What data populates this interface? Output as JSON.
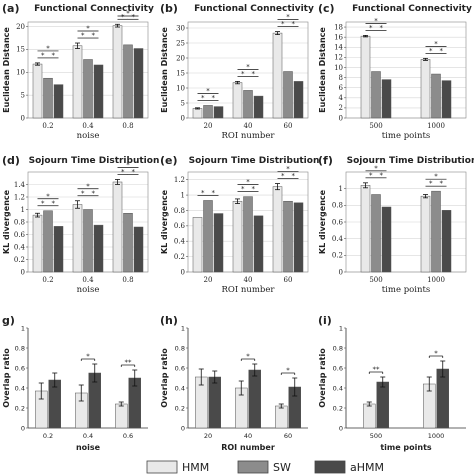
{
  "legend": [
    {
      "name": "HMM",
      "color": "#e9e9e9"
    },
    {
      "name": "SW",
      "color": "#8c8c8c"
    },
    {
      "name": "aHMM",
      "color": "#4a4a4a"
    }
  ],
  "chart_data": [
    {
      "letter": "(a)",
      "type": "bar",
      "title": "Functional Connectivity",
      "xlabel": "noise",
      "ylabel": "Euclidean Distance",
      "categories": [
        "0.2",
        "0.4",
        "0.8"
      ],
      "ylim": [
        0,
        21
      ],
      "yticks": [
        0,
        5,
        10,
        15,
        20
      ],
      "series": [
        {
          "name": "HMM",
          "values": [
            11.8,
            15.8,
            20.2
          ],
          "err": [
            0.25,
            0.6,
            0.3
          ]
        },
        {
          "name": "SW",
          "values": [
            8.7,
            12.8,
            16.0
          ],
          "err": [
            0,
            0,
            0
          ]
        },
        {
          "name": "aHMM",
          "values": [
            7.3,
            11.6,
            15.2
          ],
          "err": [
            0,
            0,
            0
          ]
        }
      ],
      "significance": [
        {
          "group": 0,
          "from": 0,
          "to": 1,
          "level": 0,
          "label": "*"
        },
        {
          "group": 0,
          "from": 0,
          "to": 2,
          "level": 1,
          "label": "*"
        },
        {
          "group": 0,
          "from": 1,
          "to": 2,
          "level": 0,
          "label": "*"
        },
        {
          "group": 1,
          "from": 0,
          "to": 1,
          "level": 0,
          "label": "*"
        },
        {
          "group": 1,
          "from": 0,
          "to": 2,
          "level": 1,
          "label": "*"
        },
        {
          "group": 1,
          "from": 1,
          "to": 2,
          "level": 0,
          "label": "*"
        },
        {
          "group": 2,
          "from": 0,
          "to": 1,
          "level": 0,
          "label": "*"
        },
        {
          "group": 2,
          "from": 0,
          "to": 2,
          "level": 1,
          "label": "*"
        },
        {
          "group": 2,
          "from": 1,
          "to": 2,
          "level": 0,
          "label": "*"
        }
      ]
    },
    {
      "letter": "(b)",
      "type": "bar",
      "title": "Functional Connectivity",
      "xlabel": "ROI number",
      "ylabel": "Euclidean Distance",
      "categories": [
        "20",
        "40",
        "60"
      ],
      "ylim": [
        0,
        32
      ],
      "yticks": [
        0,
        5,
        10,
        15,
        20,
        25,
        30
      ],
      "series": [
        {
          "name": "HMM",
          "values": [
            3.2,
            11.8,
            28.3
          ],
          "err": [
            0.2,
            0.4,
            0.5
          ]
        },
        {
          "name": "SW",
          "values": [
            4.2,
            9.2,
            15.5
          ],
          "err": [
            0,
            0,
            0
          ]
        },
        {
          "name": "aHMM",
          "values": [
            3.8,
            7.3,
            12.2
          ],
          "err": [
            0,
            0,
            0
          ]
        }
      ],
      "significance": [
        {
          "group": 0,
          "from": 0,
          "to": 1,
          "level": 0,
          "label": "*"
        },
        {
          "group": 0,
          "from": 0,
          "to": 2,
          "level": 1,
          "label": "*"
        },
        {
          "group": 0,
          "from": 1,
          "to": 2,
          "level": 0,
          "label": "*"
        },
        {
          "group": 1,
          "from": 0,
          "to": 1,
          "level": 0,
          "label": "*"
        },
        {
          "group": 1,
          "from": 0,
          "to": 2,
          "level": 1,
          "label": "*"
        },
        {
          "group": 1,
          "from": 1,
          "to": 2,
          "level": 0,
          "label": "*"
        },
        {
          "group": 2,
          "from": 0,
          "to": 1,
          "level": 0,
          "label": "*"
        },
        {
          "group": 2,
          "from": 0,
          "to": 2,
          "level": 1,
          "label": "*"
        },
        {
          "group": 2,
          "from": 1,
          "to": 2,
          "level": 0,
          "label": "*"
        }
      ]
    },
    {
      "letter": "(c)",
      "type": "bar",
      "title": "Functional Connectivity",
      "xlabel": "time points",
      "ylabel": "Euclidean Distance",
      "categories": [
        "500",
        "1000"
      ],
      "ylim": [
        0,
        19
      ],
      "yticks": [
        0,
        2,
        4,
        6,
        8,
        10,
        12,
        14,
        16,
        18
      ],
      "series": [
        {
          "name": "HMM",
          "values": [
            16.2,
            11.6
          ],
          "err": [
            0.15,
            0.2
          ]
        },
        {
          "name": "SW",
          "values": [
            9.2,
            8.7
          ],
          "err": [
            0,
            0
          ]
        },
        {
          "name": "aHMM",
          "values": [
            7.6,
            7.4
          ],
          "err": [
            0,
            0
          ]
        }
      ],
      "significance": [
        {
          "group": 0,
          "from": 0,
          "to": 1,
          "level": 0,
          "label": "*"
        },
        {
          "group": 0,
          "from": 0,
          "to": 2,
          "level": 1,
          "label": "*"
        },
        {
          "group": 0,
          "from": 1,
          "to": 2,
          "level": 0,
          "label": "*"
        },
        {
          "group": 1,
          "from": 0,
          "to": 1,
          "level": 0,
          "label": "*"
        },
        {
          "group": 1,
          "from": 0,
          "to": 2,
          "level": 1,
          "label": "*"
        },
        {
          "group": 1,
          "from": 1,
          "to": 2,
          "level": 0,
          "label": "*"
        }
      ]
    },
    {
      "letter": "(d)",
      "type": "bar",
      "title": "Sojourn Time Distribution",
      "xlabel": "noise",
      "ylabel": "KL divergence",
      "categories": [
        "0.2",
        "0.4",
        "0.8"
      ],
      "ylim": [
        0,
        1.6
      ],
      "yticks": [
        0,
        0.2,
        0.4,
        0.6,
        0.8,
        1,
        1.2,
        1.4
      ],
      "series": [
        {
          "name": "HMM",
          "values": [
            0.91,
            1.08,
            1.44
          ],
          "err": [
            0.03,
            0.06,
            0.04
          ]
        },
        {
          "name": "SW",
          "values": [
            0.98,
            1.0,
            0.94
          ],
          "err": [
            0,
            0,
            0
          ]
        },
        {
          "name": "aHMM",
          "values": [
            0.73,
            0.75,
            0.72
          ],
          "err": [
            0,
            0,
            0
          ]
        }
      ],
      "significance": [
        {
          "group": 0,
          "from": 0,
          "to": 1,
          "level": 0,
          "label": "*"
        },
        {
          "group": 0,
          "from": 0,
          "to": 2,
          "level": 1,
          "label": "*"
        },
        {
          "group": 0,
          "from": 1,
          "to": 2,
          "level": 0,
          "label": "*"
        },
        {
          "group": 1,
          "from": 0,
          "to": 1,
          "level": 0,
          "label": "*"
        },
        {
          "group": 1,
          "from": 0,
          "to": 2,
          "level": 1,
          "label": "*"
        },
        {
          "group": 1,
          "from": 1,
          "to": 2,
          "level": 0,
          "label": "*"
        },
        {
          "group": 2,
          "from": 0,
          "to": 1,
          "level": 0,
          "label": "*"
        },
        {
          "group": 2,
          "from": 0,
          "to": 2,
          "level": 1,
          "label": "*"
        },
        {
          "group": 2,
          "from": 1,
          "to": 2,
          "level": 0,
          "label": "*"
        }
      ]
    },
    {
      "letter": "(e)",
      "type": "bar",
      "title": "Sojourn Time Distribution",
      "xlabel": "ROI number",
      "ylabel": "KL divergence",
      "categories": [
        "20",
        "40",
        "60"
      ],
      "ylim": [
        0,
        1.3
      ],
      "yticks": [
        0,
        0.2,
        0.4,
        0.6,
        0.8,
        1,
        1.2
      ],
      "series": [
        {
          "name": "HMM",
          "values": [
            0.71,
            0.92,
            1.11
          ],
          "err": [
            0,
            0.03,
            0.04
          ]
        },
        {
          "name": "SW",
          "values": [
            0.93,
            0.98,
            0.92
          ],
          "err": [
            0,
            0,
            0
          ]
        },
        {
          "name": "aHMM",
          "values": [
            0.76,
            0.73,
            0.9
          ],
          "err": [
            0,
            0,
            0
          ]
        }
      ],
      "significance": [
        {
          "group": 0,
          "from": 0,
          "to": 1,
          "level": 0,
          "label": "*"
        },
        {
          "group": 0,
          "from": 1,
          "to": 2,
          "level": 0,
          "label": "*"
        },
        {
          "group": 1,
          "from": 0,
          "to": 1,
          "level": 0,
          "label": "*"
        },
        {
          "group": 1,
          "from": 0,
          "to": 2,
          "level": 1,
          "label": "*"
        },
        {
          "group": 1,
          "from": 1,
          "to": 2,
          "level": 0,
          "label": "*"
        },
        {
          "group": 2,
          "from": 0,
          "to": 1,
          "level": 0,
          "label": "*"
        },
        {
          "group": 2,
          "from": 0,
          "to": 2,
          "level": 1,
          "label": "*"
        },
        {
          "group": 2,
          "from": 1,
          "to": 2,
          "level": 0,
          "label": "*"
        }
      ]
    },
    {
      "letter": "(f)",
      "type": "bar",
      "title": "Sojourn Time Distribution",
      "xlabel": "time points",
      "ylabel": "KL divergence",
      "categories": [
        "500",
        "1000"
      ],
      "ylim": [
        0,
        1.2
      ],
      "yticks": [
        0,
        0.2,
        0.4,
        0.6,
        0.8,
        1
      ],
      "series": [
        {
          "name": "HMM",
          "values": [
            1.04,
            0.91
          ],
          "err": [
            0.03,
            0.02
          ]
        },
        {
          "name": "SW",
          "values": [
            0.93,
            0.97
          ],
          "err": [
            0,
            0
          ]
        },
        {
          "name": "aHMM",
          "values": [
            0.78,
            0.74
          ],
          "err": [
            0,
            0
          ]
        }
      ],
      "significance": [
        {
          "group": 0,
          "from": 0,
          "to": 1,
          "level": 0,
          "label": "*"
        },
        {
          "group": 0,
          "from": 0,
          "to": 2,
          "level": 1,
          "label": "*"
        },
        {
          "group": 0,
          "from": 1,
          "to": 2,
          "level": 0,
          "label": "*"
        },
        {
          "group": 1,
          "from": 0,
          "to": 1,
          "level": 0,
          "label": "*"
        },
        {
          "group": 1,
          "from": 0,
          "to": 2,
          "level": 1,
          "label": "*"
        },
        {
          "group": 1,
          "from": 1,
          "to": 2,
          "level": 0,
          "label": "*"
        }
      ]
    },
    {
      "letter": "g)",
      "type": "bar",
      "title": "",
      "xlabel": "noise",
      "ylabel": "Overlap ratio",
      "categories": [
        "0.2",
        "0.4",
        "0.6"
      ],
      "ylim": [
        0,
        1
      ],
      "yticks": [
        0,
        0.2,
        0.4,
        0.6,
        0.8,
        1
      ],
      "series": [
        {
          "name": "HMM",
          "values": [
            0.37,
            0.35,
            0.24
          ],
          "err": [
            0.08,
            0.08,
            0.02
          ]
        },
        {
          "name": "aHMM",
          "values": [
            0.48,
            0.55,
            0.5
          ],
          "err": [
            0.07,
            0.09,
            0.08
          ]
        }
      ],
      "significance": [
        {
          "group": 1,
          "from": 0,
          "to": 1,
          "level": 0,
          "label": "*"
        },
        {
          "group": 2,
          "from": 0,
          "to": 1,
          "level": 0,
          "label": "**"
        }
      ]
    },
    {
      "letter": "(h)",
      "type": "bar",
      "title": "",
      "xlabel": "ROI number",
      "ylabel": "Overlap ratio",
      "categories": [
        "20",
        "40",
        "60"
      ],
      "ylim": [
        0,
        1
      ],
      "yticks": [
        0,
        0.2,
        0.4,
        0.6,
        0.8,
        1
      ],
      "series": [
        {
          "name": "HMM",
          "values": [
            0.51,
            0.4,
            0.22
          ],
          "err": [
            0.08,
            0.07,
            0.02
          ]
        },
        {
          "name": "aHMM",
          "values": [
            0.51,
            0.58,
            0.41
          ],
          "err": [
            0.06,
            0.06,
            0.09
          ]
        }
      ],
      "significance": [
        {
          "group": 1,
          "from": 0,
          "to": 1,
          "level": 0,
          "label": "*"
        },
        {
          "group": 2,
          "from": 0,
          "to": 1,
          "level": 0,
          "label": "*"
        }
      ]
    },
    {
      "letter": "(i)",
      "type": "bar",
      "title": "",
      "xlabel": "time points",
      "ylabel": "Overlap ratio",
      "categories": [
        "500",
        "1000"
      ],
      "ylim": [
        0,
        1
      ],
      "yticks": [
        0,
        0.2,
        0.4,
        0.6,
        0.8,
        1
      ],
      "series": [
        {
          "name": "HMM",
          "values": [
            0.24,
            0.44
          ],
          "err": [
            0.02,
            0.07
          ]
        },
        {
          "name": "aHMM",
          "values": [
            0.46,
            0.59
          ],
          "err": [
            0.05,
            0.08
          ]
        }
      ],
      "significance": [
        {
          "group": 0,
          "from": 0,
          "to": 1,
          "level": 0,
          "label": "**"
        },
        {
          "group": 1,
          "from": 0,
          "to": 1,
          "level": 0,
          "label": "*"
        }
      ]
    }
  ]
}
